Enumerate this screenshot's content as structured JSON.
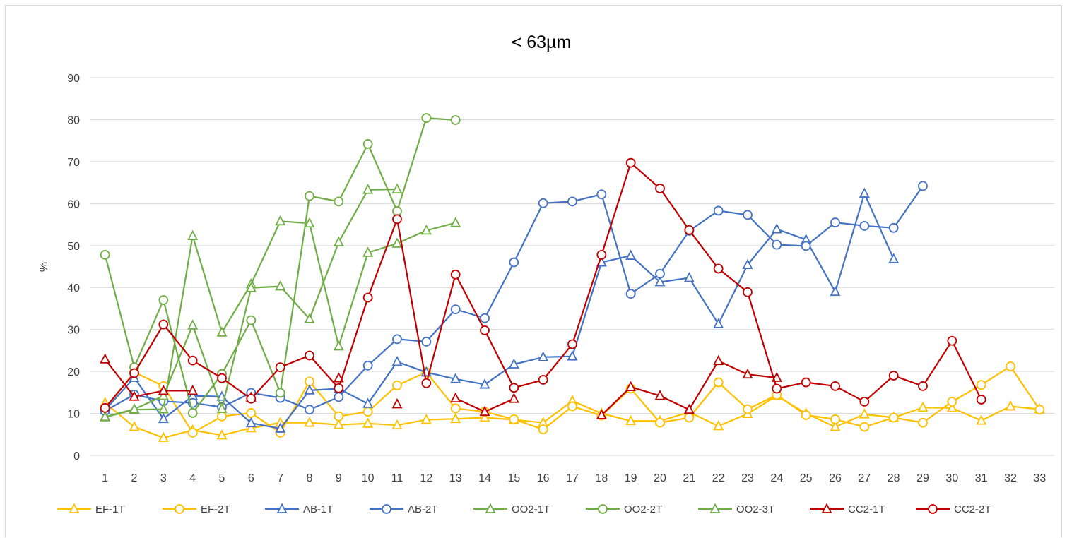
{
  "chart_data": {
    "type": "line",
    "title": "< 63µm",
    "xlabel": "",
    "ylabel": "%",
    "ylim": [
      0,
      90
    ],
    "yticks": [
      0,
      10,
      20,
      30,
      40,
      50,
      60,
      70,
      80,
      90
    ],
    "x": [
      1,
      2,
      3,
      4,
      5,
      6,
      7,
      8,
      9,
      10,
      11,
      12,
      13,
      14,
      15,
      16,
      17,
      18,
      19,
      20,
      21,
      22,
      23,
      24,
      25,
      26,
      27,
      28,
      29,
      30,
      31,
      32,
      33
    ],
    "grid": "horizontal",
    "legend_position": "bottom",
    "series": [
      {
        "name": "EF-1T",
        "color": "#ffc000",
        "marker": "triangle",
        "values": [
          12.5,
          6.8,
          4.2,
          6.0,
          4.8,
          6.5,
          7.8,
          7.8,
          7.3,
          7.6,
          7.2,
          8.5,
          8.7,
          9.0,
          8.5,
          7.8,
          13.0,
          10.0,
          8.2,
          8.2,
          10.3,
          7.0,
          9.9,
          14.2,
          10.0,
          6.8,
          9.8,
          9.0,
          11.4,
          11.3,
          8.3,
          11.7,
          11.0
        ]
      },
      {
        "name": "EF-2T",
        "color": "#ffc000",
        "marker": "circle",
        "values": [
          11.0,
          19.8,
          16.5,
          5.4,
          9.3,
          10.1,
          5.4,
          17.6,
          9.3,
          10.4,
          16.7,
          19.8,
          11.2,
          10.4,
          8.6,
          6.2,
          11.7,
          9.5,
          15.9,
          7.8,
          9.0,
          17.4,
          11.0,
          14.4,
          9.6,
          8.6,
          6.8,
          9.0,
          7.8,
          12.8,
          16.8,
          21.2,
          10.9
        ]
      },
      {
        "name": "AB-1T",
        "color": "#4472c4",
        "marker": "triangle",
        "values": [
          10.8,
          18.5,
          8.7,
          14.2,
          14.0,
          7.7,
          6.4,
          15.5,
          15.9,
          12.3,
          22.3,
          19.8,
          18.2,
          16.9,
          21.7,
          23.4,
          23.6,
          46.0,
          47.6,
          41.3,
          42.3,
          31.3,
          45.4,
          53.9,
          51.4,
          39.0,
          62.4,
          46.8,
          null,
          null,
          null,
          null,
          null
        ]
      },
      {
        "name": "AB-2T",
        "color": "#4472c4",
        "marker": "circle",
        "values": [
          10.6,
          14.5,
          12.9,
          12.5,
          11.5,
          14.9,
          13.7,
          10.9,
          13.9,
          21.4,
          27.7,
          27.1,
          34.8,
          32.7,
          46.0,
          60.1,
          60.5,
          62.2,
          38.5,
          43.3,
          53.5,
          58.3,
          57.3,
          50.2,
          49.9,
          55.5,
          54.7,
          54.2,
          64.2,
          null,
          null,
          null,
          null
        ]
      },
      {
        "name": "OO2-1T",
        "color": "#70ad47",
        "marker": "triangle",
        "values": [
          9.1,
          10.9,
          11.0,
          52.3,
          29.3,
          40.8,
          55.8,
          55.3,
          26.0,
          48.3,
          50.5,
          53.6,
          55.4,
          null,
          null,
          null,
          null,
          null,
          null,
          null,
          null,
          null,
          null,
          null,
          null,
          null,
          null,
          null,
          null,
          null,
          null,
          null,
          null
        ]
      },
      {
        "name": "OO2-2T",
        "color": "#70ad47",
        "marker": "circle",
        "values": [
          47.8,
          21.0,
          37.0,
          10.1,
          19.4,
          32.2,
          14.9,
          61.8,
          60.5,
          74.2,
          58.2,
          80.4,
          79.9,
          null,
          null,
          null,
          null,
          null,
          null,
          null,
          null,
          null,
          null,
          null,
          null,
          null,
          null,
          null,
          null,
          null,
          null,
          null,
          null
        ]
      },
      {
        "name": "OO2-3T",
        "color": "#70ad47",
        "marker": "triangle",
        "values": [
          9.2,
          11.0,
          14.2,
          31.0,
          11.1,
          39.9,
          40.3,
          32.5,
          50.8,
          63.3,
          63.4,
          null,
          null,
          null,
          null,
          null,
          null,
          null,
          null,
          null,
          null,
          null,
          null,
          null,
          null,
          null,
          null,
          null,
          null,
          null,
          null,
          null,
          null
        ]
      },
      {
        "name": "CC2-1T",
        "color": "#c00000",
        "marker": "triangle",
        "values": [
          22.9,
          14.0,
          15.4,
          15.4,
          null,
          13.8,
          null,
          null,
          18.4,
          null,
          12.2,
          null,
          13.6,
          10.4,
          13.5,
          null,
          null,
          9.6,
          16.3,
          14.2,
          10.9,
          22.5,
          19.3,
          18.5,
          null,
          null,
          null,
          null,
          null,
          null,
          null,
          null,
          null
        ]
      },
      {
        "name": "CC2-2T",
        "color": "#c00000",
        "marker": "circle",
        "values": [
          11.3,
          19.6,
          31.2,
          22.6,
          18.4,
          13.5,
          21.0,
          23.8,
          16.0,
          37.6,
          56.3,
          17.2,
          43.1,
          29.8,
          16.1,
          18.0,
          26.5,
          47.8,
          69.7,
          63.6,
          53.7,
          44.5,
          38.9,
          15.9,
          17.4,
          16.5,
          12.8,
          19.0,
          16.5,
          27.3,
          13.3,
          null,
          null
        ]
      }
    ]
  }
}
